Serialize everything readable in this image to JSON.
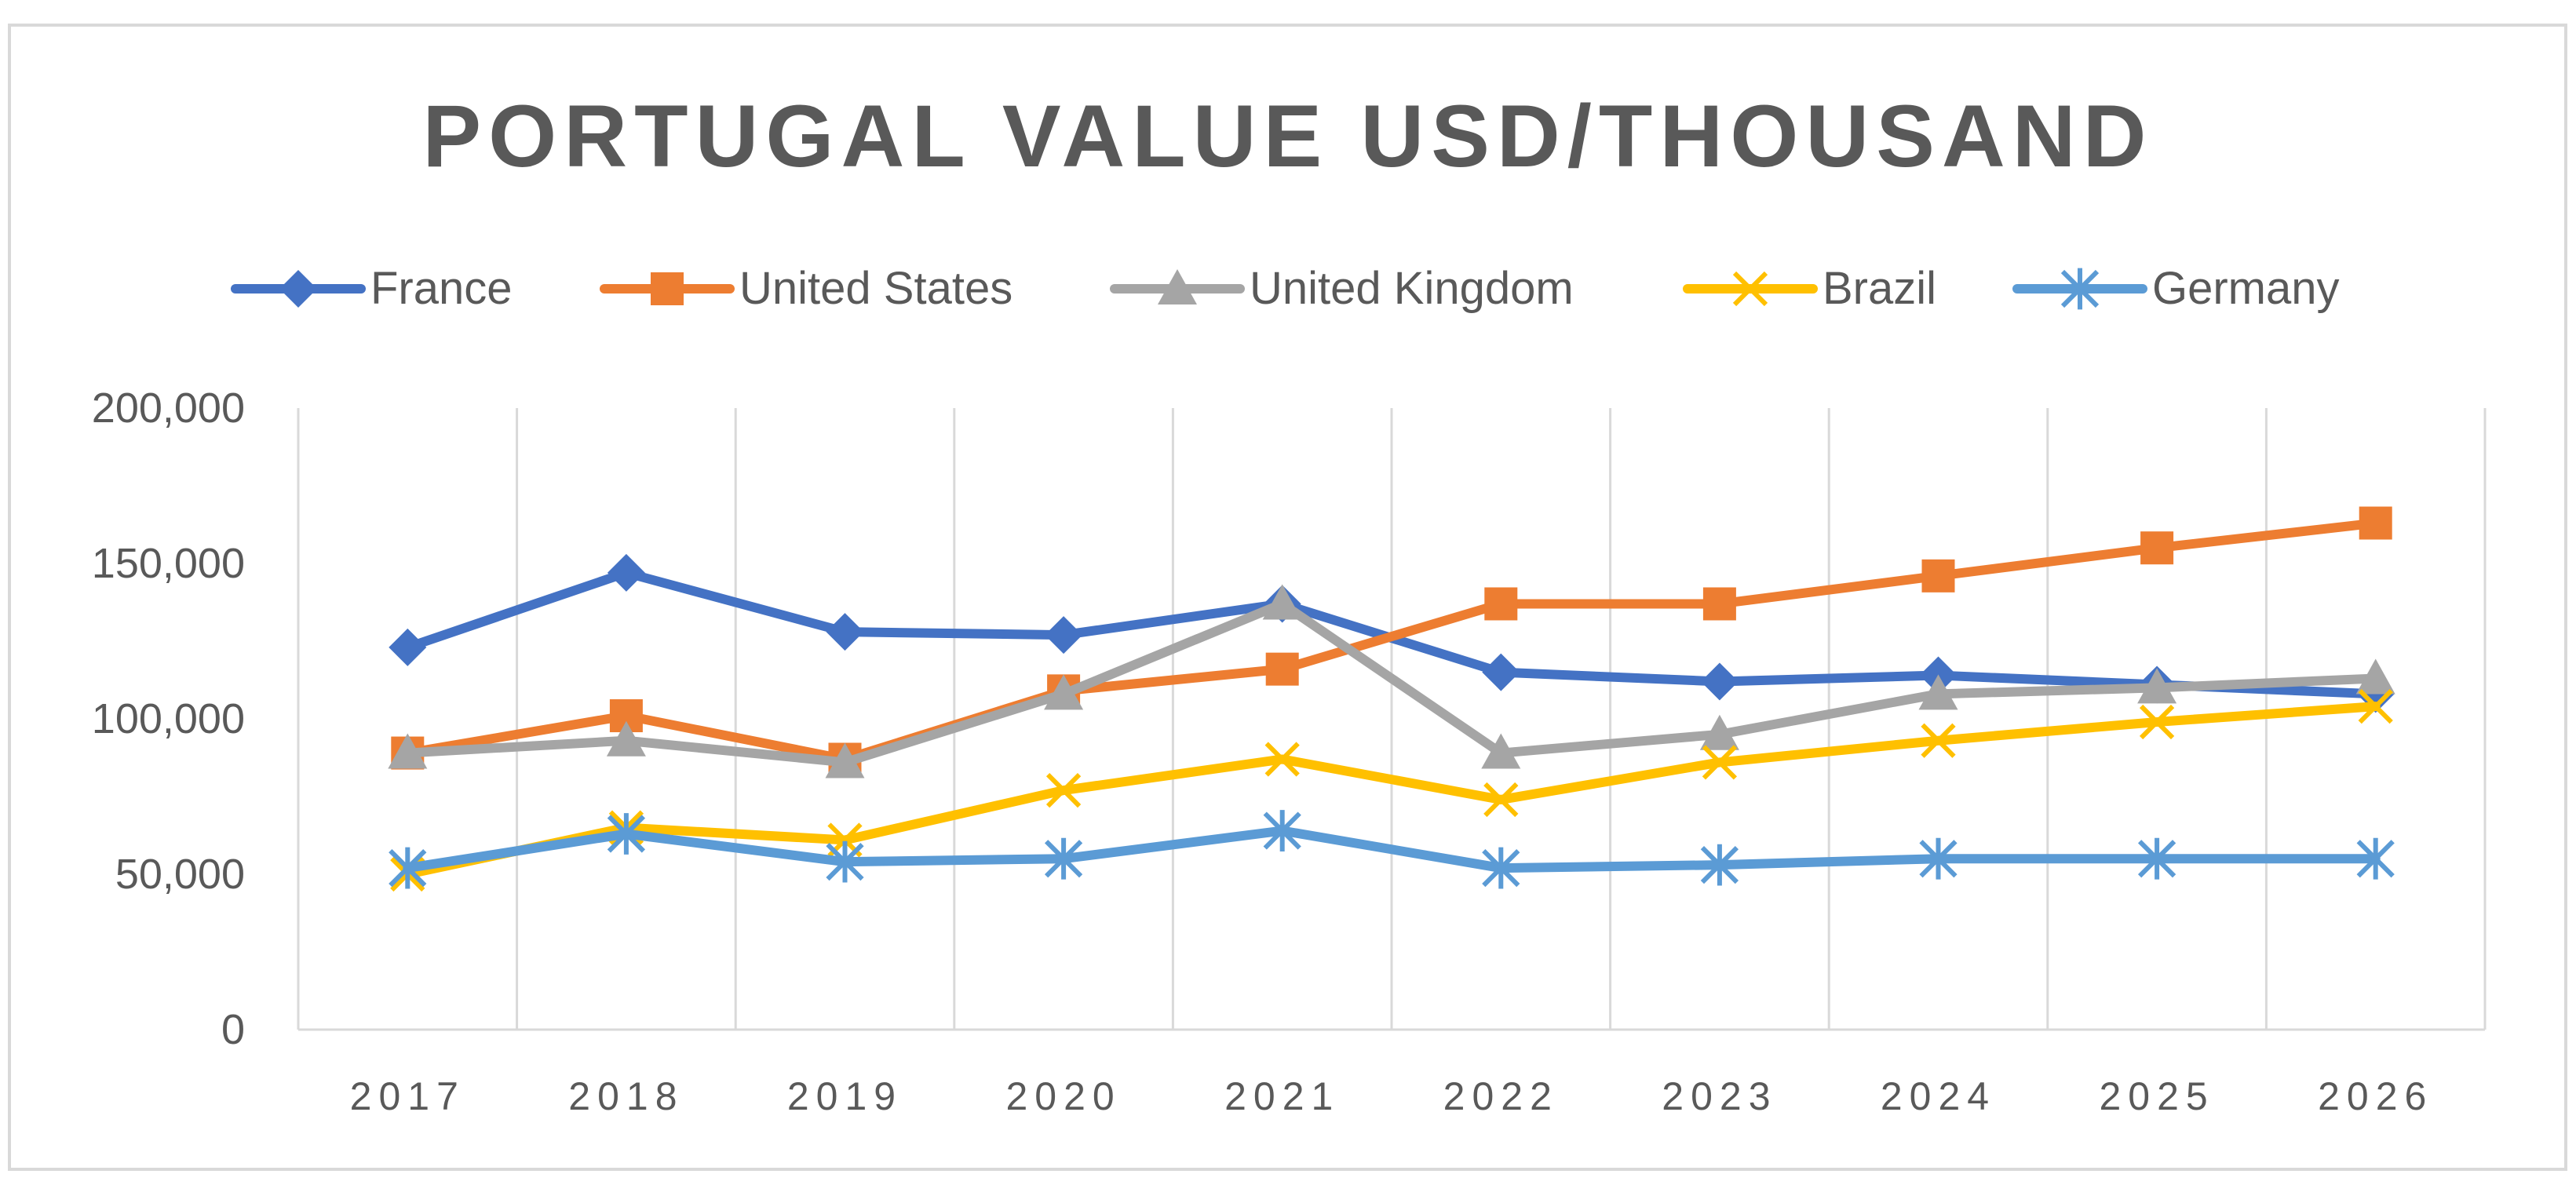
{
  "chart_data": {
    "type": "line",
    "title": "PORTUGAL VALUE USD/THOUSAND",
    "xlabel": "",
    "ylabel": "",
    "categories": [
      "2017",
      "2018",
      "2019",
      "2020",
      "2021",
      "2022",
      "2023",
      "2024",
      "2025",
      "2026"
    ],
    "ylim": [
      0,
      200000
    ],
    "yticks": [
      0,
      50000,
      100000,
      150000,
      200000
    ],
    "ytick_labels": [
      "0",
      "50,000",
      "100,000",
      "150,000",
      "200,000"
    ],
    "grid": "vertical",
    "legend_position": "top",
    "series": [
      {
        "name": "France",
        "color": "#4472C4",
        "marker": "diamond",
        "values": [
          123000,
          147000,
          128000,
          127000,
          137000,
          115000,
          112000,
          114000,
          111000,
          108000
        ]
      },
      {
        "name": "United States",
        "color": "#ED7D31",
        "marker": "square",
        "values": [
          89000,
          101000,
          87000,
          109000,
          116000,
          137000,
          137000,
          146000,
          155000,
          163000
        ]
      },
      {
        "name": "United Kingdom",
        "color": "#A5A5A5",
        "marker": "triangle",
        "values": [
          89000,
          93000,
          86000,
          108000,
          137000,
          89000,
          95000,
          108000,
          110000,
          113000
        ]
      },
      {
        "name": "Brazil",
        "color": "#FFC000",
        "marker": "x",
        "values": [
          50000,
          65000,
          61000,
          77000,
          87000,
          74000,
          86000,
          93000,
          99000,
          104000
        ]
      },
      {
        "name": "Germany",
        "color": "#5B9BD5",
        "marker": "star",
        "values": [
          52000,
          63000,
          54000,
          55000,
          64000,
          52000,
          53000,
          55000,
          55000,
          55000
        ]
      }
    ]
  }
}
